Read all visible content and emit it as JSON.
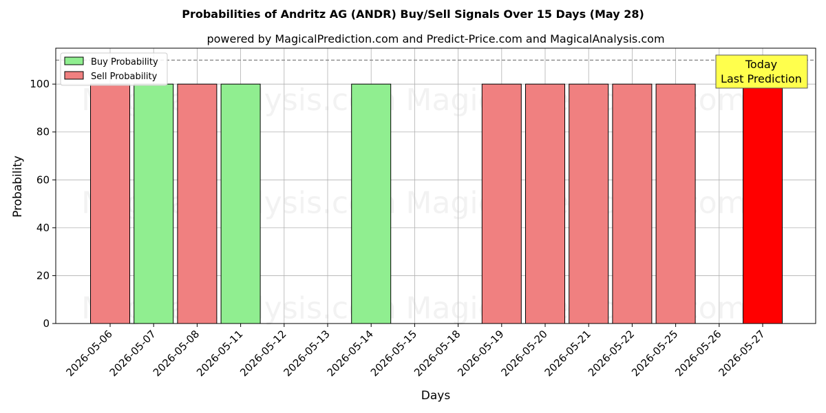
{
  "chart_data": {
    "type": "bar",
    "title": "Probabilities of Andritz AG (ANDR) Buy/Sell Signals Over 15 Days (May 28)",
    "subtitle": "powered by MagicalPrediction.com and Predict-Price.com and MagicalAnalysis.com",
    "xlabel": "Days",
    "ylabel": "Probability",
    "ylim": [
      0,
      115
    ],
    "yticks": [
      0,
      20,
      40,
      60,
      80,
      100
    ],
    "grid": true,
    "legend_position": "top-left",
    "categories": [
      "2026-05-06",
      "2026-05-07",
      "2026-05-08",
      "2026-05-11",
      "2026-05-12",
      "2026-05-13",
      "2026-05-14",
      "2026-05-15",
      "2026-05-18",
      "2026-05-19",
      "2026-05-20",
      "2026-05-21",
      "2026-05-22",
      "2026-05-25",
      "2026-05-26",
      "2026-05-27"
    ],
    "series": [
      {
        "name": "Buy Probability",
        "color": "#90ee90",
        "values": [
          0,
          100,
          0,
          100,
          0,
          0,
          100,
          0,
          0,
          0,
          0,
          0,
          0,
          0,
          0,
          0
        ]
      },
      {
        "name": "Sell Probability",
        "color": "#f08080",
        "values": [
          100,
          0,
          100,
          0,
          0,
          0,
          0,
          0,
          0,
          100,
          100,
          100,
          100,
          100,
          0,
          0
        ]
      },
      {
        "values": [
          0,
          0,
          0,
          0,
          0,
          0,
          0,
          0,
          0,
          0,
          0,
          0,
          0,
          0,
          0,
          100
        ],
        "color": "#ff0000"
      }
    ],
    "reference_line": {
      "y": 110,
      "style": "dashed"
    },
    "annotation": {
      "lines": [
        "Today",
        "Last Prediction"
      ],
      "background": "#ffff4d"
    },
    "watermarks": [
      "MagicalAnalysis.com",
      "MagicalPrediction.com"
    ]
  }
}
